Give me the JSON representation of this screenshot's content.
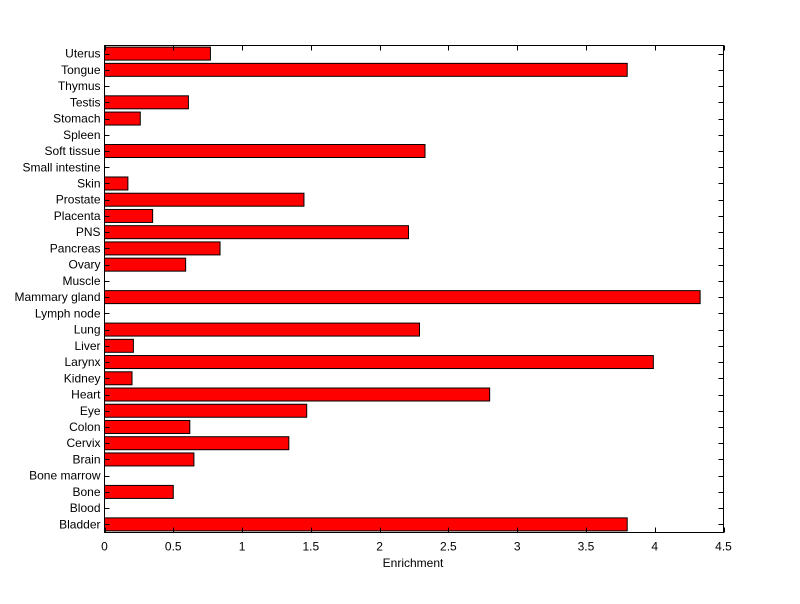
{
  "chart_data": {
    "type": "bar",
    "orientation": "horizontal",
    "title": "",
    "xlabel": "Enrichment",
    "ylabel": "",
    "xlim": [
      0,
      4.5
    ],
    "xticks": [
      "0",
      "0.5",
      "1",
      "1.5",
      "2",
      "2.5",
      "3",
      "3.5",
      "4",
      "4.5"
    ],
    "xtick_values": [
      0,
      0.5,
      1,
      1.5,
      2,
      2.5,
      3,
      3.5,
      4,
      4.5
    ],
    "grid": false,
    "legend": "none",
    "bar_color": "#ff0000",
    "edge_color": "#000000",
    "categories": [
      "Bladder",
      "Blood",
      "Bone",
      "Bone marrow",
      "Brain",
      "Cervix",
      "Colon",
      "Eye",
      "Heart",
      "Kidney",
      "Larynx",
      "Liver",
      "Lung",
      "Lymph node",
      "Mammary gland",
      "Muscle",
      "Ovary",
      "Pancreas",
      "PNS",
      "Placenta",
      "Prostate",
      "Skin",
      "Small intestine",
      "Soft tissue",
      "Spleen",
      "Stomach",
      "Testis",
      "Thymus",
      "Tongue",
      "Uterus"
    ],
    "values": [
      3.8,
      0,
      0.5,
      0,
      0.65,
      1.34,
      0.62,
      1.47,
      2.8,
      0.2,
      3.99,
      0.21,
      2.29,
      0,
      4.33,
      0,
      0.59,
      0.84,
      2.21,
      0.35,
      1.45,
      0.17,
      0,
      2.33,
      0,
      0.26,
      0.61,
      0,
      3.8,
      0.77
    ]
  }
}
